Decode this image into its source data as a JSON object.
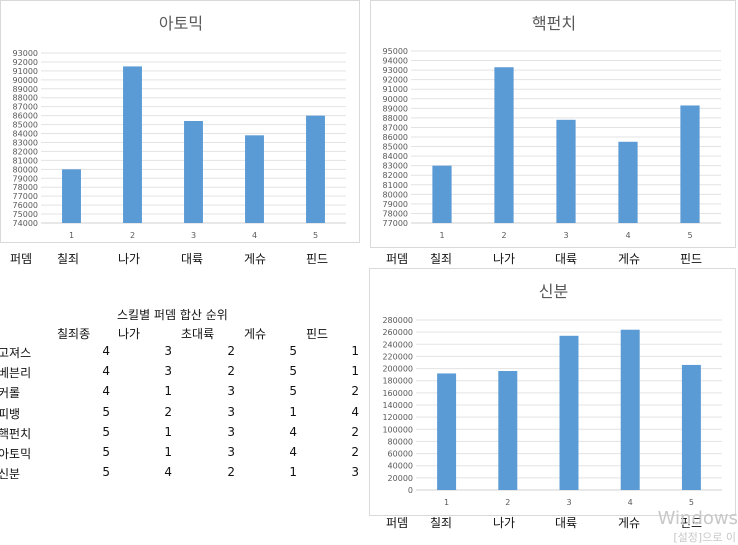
{
  "chart_data": [
    {
      "type": "bar",
      "title": "아토믹",
      "categories": [
        "1",
        "2",
        "3",
        "4",
        "5"
      ],
      "values": [
        80000,
        91500,
        85400,
        83800,
        86000
      ],
      "ylim": [
        74000,
        93000
      ],
      "ystep": 1000,
      "grid": true,
      "legend": "none"
    },
    {
      "type": "bar",
      "title": "핵펀치",
      "categories": [
        "1",
        "2",
        "3",
        "4",
        "5"
      ],
      "values": [
        83000,
        93300,
        87800,
        85500,
        89300
      ],
      "ylim": [
        77000,
        95000
      ],
      "ystep": 1000,
      "grid": true,
      "legend": "none"
    },
    {
      "type": "bar",
      "title": "신분",
      "categories": [
        "1",
        "2",
        "3",
        "4",
        "5"
      ],
      "values": [
        192000,
        196000,
        254000,
        264000,
        206000
      ],
      "ylim": [
        0,
        280000
      ],
      "ystep": 20000,
      "grid": true,
      "legend": "none"
    }
  ],
  "category_labels": {
    "row1": [
      "퍼뎀",
      "칠죄",
      "나가",
      "대륙",
      "게슈",
      "핀드"
    ],
    "row2": [
      "퍼뎀",
      "칠죄",
      "나가",
      "대륙",
      "게슈",
      "핀드"
    ],
    "row3": [
      "퍼뎀",
      "칠죄",
      "나가",
      "대륙",
      "게슈",
      "핀드"
    ]
  },
  "table": {
    "title": "스킬별 퍼뎀 합산 순위",
    "headers": [
      "칠죄종",
      "나가",
      "초대륙",
      "게슈",
      "핀드"
    ],
    "rows": [
      {
        "name": "고져스",
        "values": [
          "4",
          "3",
          "2",
          "5",
          "1"
        ]
      },
      {
        "name": "베븐리",
        "values": [
          "4",
          "3",
          "2",
          "5",
          "1"
        ]
      },
      {
        "name": "커롤",
        "values": [
          "4",
          "1",
          "3",
          "5",
          "2"
        ]
      },
      {
        "name": "피뱅",
        "values": [
          "5",
          "2",
          "3",
          "1",
          "4"
        ]
      },
      {
        "name": "핵펀치",
        "values": [
          "5",
          "1",
          "3",
          "4",
          "2"
        ]
      },
      {
        "name": "아토믹",
        "values": [
          "5",
          "1",
          "3",
          "4",
          "2"
        ]
      },
      {
        "name": "신분",
        "values": [
          "5",
          "4",
          "2",
          "1",
          "3"
        ]
      }
    ]
  },
  "watermark": {
    "line1": "Windows",
    "line2": "[설정]으로 이"
  }
}
